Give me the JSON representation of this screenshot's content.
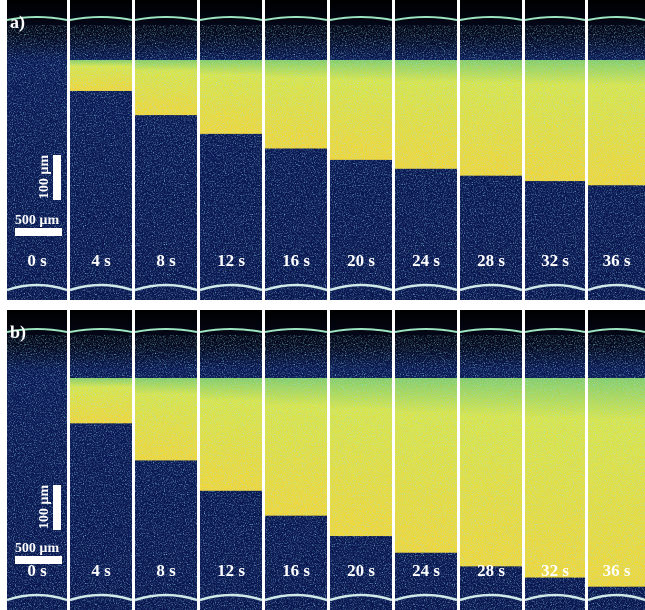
{
  "panels": [
    {
      "label": "a)",
      "frames": [
        "0 s",
        "4 s",
        "8 s",
        "12 s",
        "16 s",
        "20 s",
        "24 s",
        "28 s",
        "32 s",
        "36 s"
      ],
      "scale_vertical": "100 µm",
      "scale_horizontal": "500 µm"
    },
    {
      "label": "b)",
      "frames": [
        "0 s",
        "4 s",
        "8 s",
        "12 s",
        "16 s",
        "20 s",
        "24 s",
        "28 s",
        "32 s",
        "36 s"
      ],
      "scale_vertical": "100 µm",
      "scale_horizontal": "500 µm"
    }
  ]
}
